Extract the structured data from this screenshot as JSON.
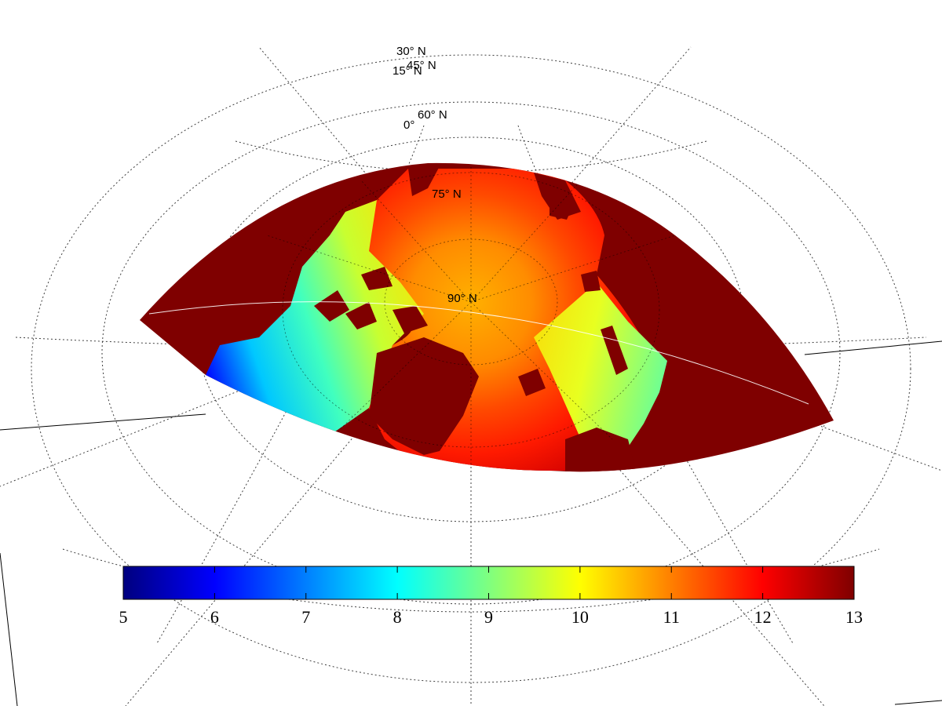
{
  "map": {
    "projection": "stereographic-oblique",
    "variable_colormap": "jet",
    "land_color": "#7f0000",
    "graticule_color": "#000000",
    "latitude_labels": [
      "30° N",
      "45° N",
      "15° N",
      "0°",
      "60° N",
      "75° N",
      "90° N"
    ]
  },
  "colorbar": {
    "min": 5,
    "max": 13,
    "ticks": [
      "5",
      "6",
      "7",
      "8",
      "9",
      "10",
      "11",
      "12",
      "13"
    ],
    "colormap": "jet"
  }
}
